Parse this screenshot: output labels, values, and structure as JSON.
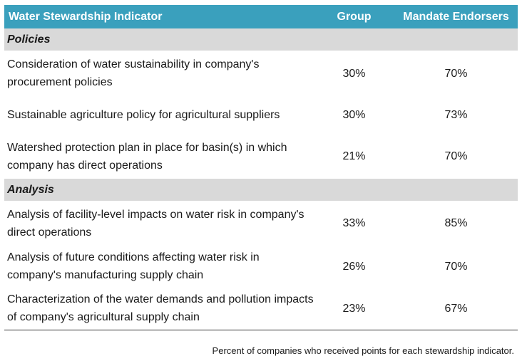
{
  "table": {
    "headers": {
      "indicator": "Water Stewardship Indicator",
      "group": "Group",
      "endorsers": "Mandate Endorsers"
    },
    "sections": [
      {
        "title": "Policies",
        "rows": [
          {
            "indicator": "Consideration of water sustainability in company's procurement policies",
            "group": "30%",
            "endorsers": "70%"
          },
          {
            "indicator": "Sustainable agriculture policy for agricultural suppliers",
            "group": "30%",
            "endorsers": "73%"
          },
          {
            "indicator": "Watershed protection plan in place for basin(s) in which company has direct operations",
            "group": "21%",
            "endorsers": "70%"
          }
        ]
      },
      {
        "title": "Analysis",
        "rows": [
          {
            "indicator": "Analysis of facility-level impacts on water risk in company's direct operations",
            "group": "33%",
            "endorsers": "85%"
          },
          {
            "indicator": "Analysis of future conditions affecting water risk in company's manufacturing supply chain",
            "group": "26%",
            "endorsers": "70%"
          },
          {
            "indicator": "Characterization of the water demands and pollution impacts of company's agricultural supply chain",
            "group": "23%",
            "endorsers": "67%"
          }
        ]
      }
    ]
  },
  "footnote": "Percent of companies who received points for each stewardship indicator.",
  "colors": {
    "header_bg": "#3aa0bd",
    "section_bg": "#d9d9d9"
  }
}
